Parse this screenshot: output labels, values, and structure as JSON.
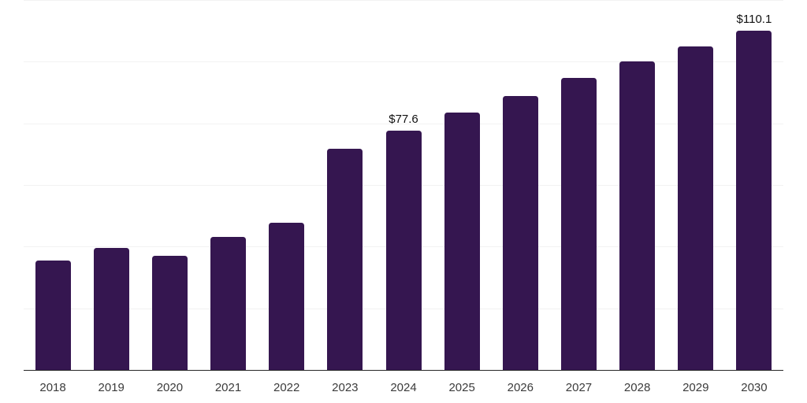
{
  "chart_data": {
    "type": "bar",
    "categories": [
      "2018",
      "2019",
      "2020",
      "2021",
      "2022",
      "2023",
      "2024",
      "2025",
      "2026",
      "2027",
      "2028",
      "2029",
      "2030"
    ],
    "values": [
      35.5,
      39.7,
      36.9,
      43.2,
      47.8,
      71.7,
      77.6,
      83.4,
      88.9,
      94.6,
      100.0,
      105.0,
      110.1
    ],
    "annotations": [
      {
        "category": "2024",
        "text": "$77.6"
      },
      {
        "category": "2030",
        "text": "$110.1"
      }
    ],
    "xlabel": "",
    "ylabel": "",
    "ylim": [
      0,
      120
    ],
    "gridline_step": 20,
    "grid": true,
    "y_tick_labels_visible": false,
    "legend": "none",
    "colors": {
      "bar": "#351650",
      "gridline": "#f2f2f2",
      "axis_line": "#262626",
      "tick_label": "#3b3b3b",
      "annotation": "#111111",
      "background": "#ffffff"
    }
  }
}
